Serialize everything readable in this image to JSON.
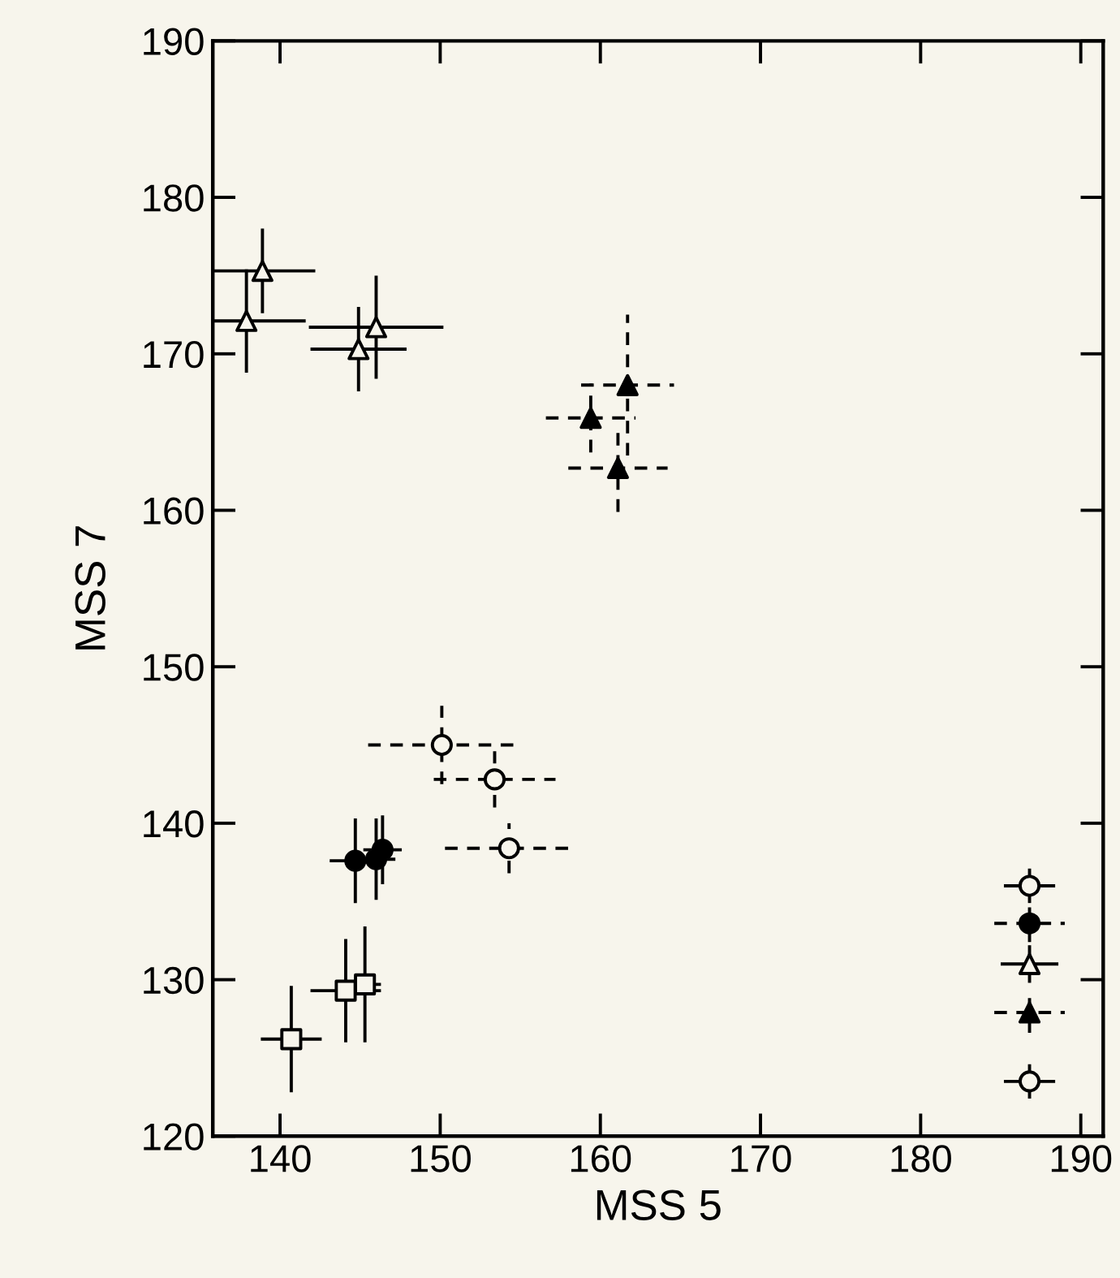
{
  "chart_data": {
    "type": "scatter",
    "xlabel": "MSS 5",
    "ylabel": "MSS 7",
    "xlim": [
      135.8,
      191.4
    ],
    "ylim": [
      120,
      190
    ],
    "xticks": [
      140,
      150,
      160,
      170,
      180,
      190
    ],
    "yticks": [
      120,
      130,
      140,
      150,
      160,
      170,
      180,
      190
    ],
    "grid": false,
    "series": [
      {
        "color": "#f7f5ec",
        "marker": "triangle",
        "line_style": "solid",
        "x": [
          138.9,
          137.9,
          146.0,
          144.9,
          186.8
        ],
        "values": [
          175.3,
          172.1,
          171.7,
          170.3,
          131.0
        ],
        "errors": [
          2.7,
          3.3,
          3.3,
          2.7,
          1.2
        ],
        "xerrors": [
          3.3,
          3.7,
          4.2,
          3.0,
          1.8
        ]
      },
      {
        "color": "#000000",
        "marker": "triangle",
        "line_style": "dashed",
        "x": [
          161.7,
          159.4,
          161.1,
          186.8
        ],
        "values": [
          168.0,
          165.9,
          162.7,
          127.9
        ],
        "errors": [
          4.5,
          2.2,
          2.8,
          1.3
        ],
        "xerrors": [
          2.9,
          2.8,
          3.1,
          2.2
        ]
      },
      {
        "color": "#f7f5ec",
        "marker": "circle",
        "line_style": "dashed",
        "x": [
          150.1,
          153.4,
          154.3
        ],
        "values": [
          145.0,
          142.8,
          138.4
        ],
        "errors": [
          2.5,
          1.8,
          1.6
        ],
        "xerrors": [
          4.6,
          3.8,
          4.0
        ]
      },
      {
        "color": "#000000",
        "marker": "circle",
        "line_style": "solid",
        "x": [
          144.7,
          146.0,
          146.4
        ],
        "values": [
          137.6,
          137.7,
          138.3
        ],
        "errors": [
          2.7,
          2.6,
          2.2
        ],
        "xerrors": [
          1.6,
          1.2,
          1.2
        ]
      },
      {
        "color": "#f7f5ec",
        "marker": "square",
        "line_style": "solid",
        "x": [
          140.7,
          144.1,
          145.3
        ],
        "values": [
          126.2,
          129.3,
          129.7
        ],
        "errors": [
          3.4,
          3.3,
          3.7
        ],
        "xerrors": [
          1.9,
          2.2,
          1.0
        ]
      },
      {
        "color": "#f7f5ec",
        "marker": "circle",
        "line_style": "solid",
        "x": [
          186.8,
          186.8
        ],
        "values": [
          136.0,
          123.5
        ],
        "errors": [
          1.1,
          1.1
        ],
        "xerrors": [
          1.6,
          1.6
        ]
      },
      {
        "color": "#000000",
        "marker": "circle",
        "line_style": "dashed",
        "x": [
          186.8
        ],
        "values": [
          133.6
        ],
        "errors": [
          1.2
        ],
        "xerrors": [
          2.2
        ]
      }
    ]
  }
}
